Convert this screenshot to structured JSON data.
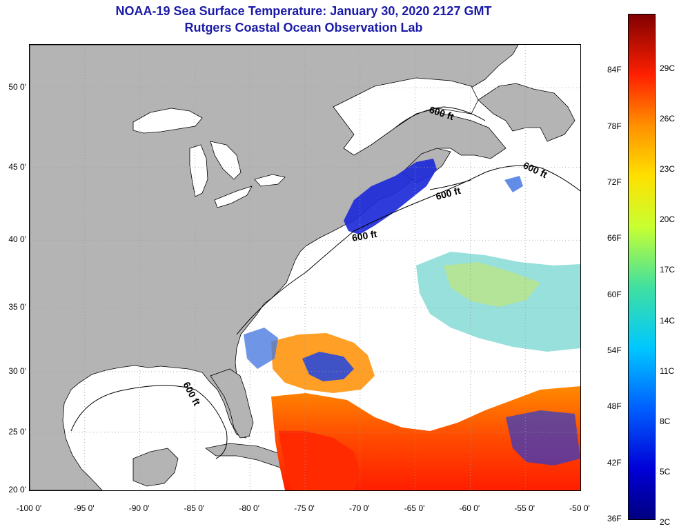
{
  "title_line1": "NOAA-19 Sea Surface Temperature:  January 30, 2020 2127 GMT",
  "title_line2": "Rutgers Coastal Ocean Observation Lab",
  "lat_labels": [
    {
      "value": 50,
      "text": "50 0'"
    },
    {
      "value": 45,
      "text": "45 0'"
    },
    {
      "value": 40,
      "text": "40 0'"
    },
    {
      "value": 35,
      "text": "35 0'"
    },
    {
      "value": 30,
      "text": "30 0'"
    },
    {
      "value": 25,
      "text": "25 0'"
    },
    {
      "value": 20,
      "text": "20 0'"
    }
  ],
  "lon_labels": [
    {
      "value": -100,
      "text": "-100 0'"
    },
    {
      "value": -95,
      "text": "-95 0'"
    },
    {
      "value": -90,
      "text": "-90 0'"
    },
    {
      "value": -85,
      "text": "-85 0'"
    },
    {
      "value": -80,
      "text": "-80 0'"
    },
    {
      "value": -75,
      "text": "-75 0'"
    },
    {
      "value": -70,
      "text": "-70 0'"
    },
    {
      "value": -65,
      "text": "-65 0'"
    },
    {
      "value": -60,
      "text": "-60 0'"
    },
    {
      "value": -55,
      "text": "-55 0'"
    },
    {
      "value": -50,
      "text": "-50 0'"
    }
  ],
  "contour_label": "600 ft",
  "colorbar": {
    "f_labels": [
      {
        "value": 84,
        "text": "84F"
      },
      {
        "value": 78,
        "text": "78F"
      },
      {
        "value": 72,
        "text": "72F"
      },
      {
        "value": 66,
        "text": "66F"
      },
      {
        "value": 60,
        "text": "60F"
      },
      {
        "value": 54,
        "text": "54F"
      },
      {
        "value": 48,
        "text": "48F"
      },
      {
        "value": 42,
        "text": "42F"
      },
      {
        "value": 36,
        "text": "36F"
      }
    ],
    "c_labels": [
      {
        "value": 29,
        "text": "29C"
      },
      {
        "value": 26,
        "text": "26C"
      },
      {
        "value": 23,
        "text": "23C"
      },
      {
        "value": 20,
        "text": "20C"
      },
      {
        "value": 17,
        "text": "17C"
      },
      {
        "value": 14,
        "text": "14C"
      },
      {
        "value": 11,
        "text": "11C"
      },
      {
        "value": 8,
        "text": "8C"
      },
      {
        "value": 5,
        "text": "5C"
      },
      {
        "value": 2,
        "text": "2C"
      }
    ]
  },
  "colors": {
    "land": "#b4b4b4",
    "title": "#1a1aa8"
  }
}
